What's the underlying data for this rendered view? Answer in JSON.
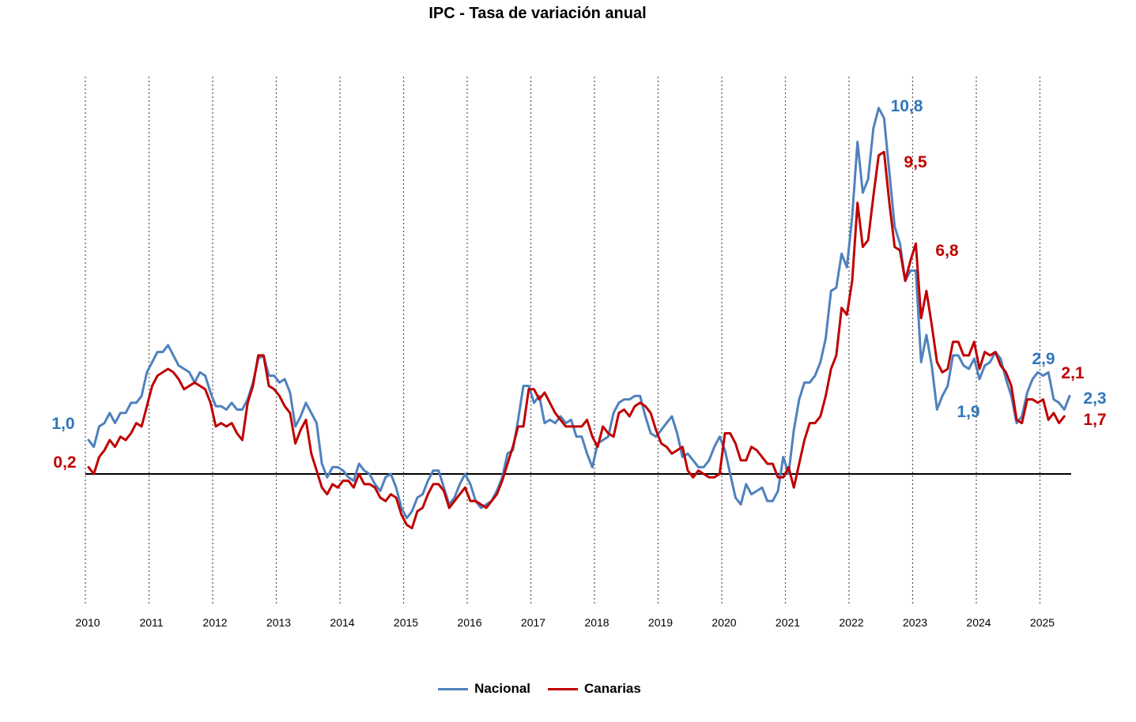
{
  "chart_data": {
    "type": "line",
    "title": "IPC - Tasa de variación anual",
    "xlabel": "",
    "ylabel": "",
    "ylim": [
      -3.0,
      12.5
    ],
    "grid": "vertical-dotted-yearly",
    "legend_position": "bottom-center",
    "x_ticks": [
      "2010",
      "2011",
      "2012",
      "2013",
      "2014",
      "2015",
      "2016",
      "2017",
      "2018",
      "2019",
      "2020",
      "2021",
      "2022",
      "2023",
      "2024",
      "2025"
    ],
    "x_start_year": 2010,
    "colors": {
      "Nacional": "#4F81BD",
      "Canarias": "#C00000",
      "axis": "#000000"
    },
    "series": [
      {
        "name": "Nacional",
        "values": [
          1.0,
          0.8,
          1.4,
          1.5,
          1.8,
          1.5,
          1.8,
          1.8,
          2.1,
          2.1,
          2.3,
          3.0,
          3.3,
          3.6,
          3.6,
          3.8,
          3.5,
          3.2,
          3.1,
          3.0,
          2.7,
          3.0,
          2.9,
          2.4,
          2.0,
          2.0,
          1.9,
          2.1,
          1.9,
          1.9,
          2.2,
          2.7,
          3.4,
          3.5,
          2.9,
          2.9,
          2.7,
          2.8,
          2.4,
          1.4,
          1.7,
          2.1,
          1.8,
          1.5,
          0.3,
          -0.1,
          0.2,
          0.2,
          0.1,
          -0.1,
          -0.2,
          0.3,
          0.1,
          0.0,
          -0.3,
          -0.5,
          -0.1,
          0.0,
          -0.4,
          -1.0,
          -1.3,
          -1.1,
          -0.7,
          -0.6,
          -0.2,
          0.1,
          0.1,
          -0.4,
          -0.9,
          -0.7,
          -0.3,
          0.0,
          -0.3,
          -0.8,
          -1.0,
          -0.9,
          -0.8,
          -0.5,
          -0.1,
          0.6,
          0.7,
          1.6,
          2.6,
          2.6,
          2.1,
          2.3,
          1.5,
          1.6,
          1.5,
          1.7,
          1.5,
          1.6,
          1.1,
          1.1,
          0.6,
          0.2,
          0.9,
          1.0,
          1.1,
          1.8,
          2.1,
          2.2,
          2.2,
          2.3,
          2.3,
          1.7,
          1.2,
          1.1,
          1.3,
          1.5,
          1.7,
          1.2,
          0.5,
          0.6,
          0.4,
          0.2,
          0.2,
          0.4,
          0.8,
          1.1,
          0.7,
          0.0,
          -0.7,
          -0.9,
          -0.3,
          -0.6,
          -0.5,
          -0.4,
          -0.8,
          -0.8,
          -0.5,
          0.5,
          0.0,
          1.3,
          2.2,
          2.7,
          2.7,
          2.9,
          3.3,
          4.0,
          5.4,
          5.5,
          6.5,
          6.1,
          7.6,
          9.8,
          8.3,
          8.7,
          10.2,
          10.8,
          10.5,
          8.9,
          7.3,
          6.8,
          5.7,
          6.0,
          6.0,
          3.3,
          4.1,
          3.2,
          1.9,
          2.3,
          2.6,
          3.5,
          3.5,
          3.2,
          3.1,
          3.4,
          2.8,
          3.2,
          3.3,
          3.6,
          3.4,
          2.8,
          2.3,
          1.5,
          1.7,
          2.4,
          2.8,
          3.0,
          2.9,
          3.0,
          2.2,
          2.1,
          1.9,
          2.3
        ],
        "end_label": "2,3"
      },
      {
        "name": "Canarias",
        "values": [
          0.2,
          0.0,
          0.5,
          0.7,
          1.0,
          0.8,
          1.1,
          1.0,
          1.2,
          1.5,
          1.4,
          2.0,
          2.6,
          2.9,
          3.0,
          3.1,
          3.0,
          2.8,
          2.5,
          2.6,
          2.7,
          2.6,
          2.5,
          2.1,
          1.4,
          1.5,
          1.4,
          1.5,
          1.2,
          1.0,
          2.1,
          2.6,
          3.5,
          3.5,
          2.6,
          2.5,
          2.3,
          2.0,
          1.8,
          0.9,
          1.3,
          1.6,
          0.6,
          0.1,
          -0.4,
          -0.6,
          -0.3,
          -0.4,
          -0.2,
          -0.2,
          -0.4,
          0.0,
          -0.3,
          -0.3,
          -0.4,
          -0.7,
          -0.8,
          -0.6,
          -0.7,
          -1.2,
          -1.5,
          -1.6,
          -1.1,
          -1.0,
          -0.6,
          -0.3,
          -0.3,
          -0.5,
          -1.0,
          -0.8,
          -0.6,
          -0.4,
          -0.8,
          -0.8,
          -0.9,
          -1.0,
          -0.8,
          -0.6,
          -0.2,
          0.3,
          0.8,
          1.4,
          1.4,
          2.5,
          2.5,
          2.2,
          2.4,
          2.1,
          1.8,
          1.6,
          1.4,
          1.4,
          1.4,
          1.4,
          1.6,
          1.1,
          0.8,
          1.4,
          1.2,
          1.1,
          1.8,
          1.9,
          1.7,
          2.0,
          2.1,
          2.0,
          1.8,
          1.3,
          0.9,
          0.8,
          0.6,
          0.7,
          0.8,
          0.1,
          -0.1,
          0.1,
          0.0,
          -0.1,
          -0.1,
          0.0,
          1.2,
          1.2,
          0.9,
          0.4,
          0.4,
          0.8,
          0.7,
          0.5,
          0.3,
          0.3,
          -0.1,
          -0.1,
          0.2,
          -0.4,
          0.3,
          1.0,
          1.5,
          1.5,
          1.7,
          2.3,
          3.1,
          3.5,
          4.9,
          4.7,
          5.7,
          8.0,
          6.7,
          6.9,
          8.2,
          9.4,
          9.5,
          8.0,
          6.7,
          6.6,
          5.7,
          6.3,
          6.8,
          4.6,
          5.4,
          4.4,
          3.3,
          3.0,
          3.1,
          3.9,
          3.9,
          3.5,
          3.5,
          3.9,
          3.1,
          3.6,
          3.5,
          3.6,
          3.2,
          3.0,
          2.6,
          1.6,
          1.5,
          2.2,
          2.2,
          2.1,
          2.2,
          1.6,
          1.8,
          1.5,
          1.7
        ],
        "end_label": "1,7"
      }
    ],
    "annotations": [
      {
        "text": "1,0",
        "series": "Nacional"
      },
      {
        "text": "0,2",
        "series": "Canarias"
      },
      {
        "text": "10,8",
        "series": "Nacional"
      },
      {
        "text": "9,5",
        "series": "Canarias"
      },
      {
        "text": "6,8",
        "series": "Canarias"
      },
      {
        "text": "1,9",
        "series": "Nacional"
      },
      {
        "text": "2,9",
        "series": "Nacional"
      },
      {
        "text": "2,1",
        "series": "Canarias"
      },
      {
        "text": "2,3",
        "series": "Nacional"
      },
      {
        "text": "1,7",
        "series": "Canarias"
      }
    ]
  },
  "legend": {
    "nacional": "Nacional",
    "canarias": "Canarias"
  }
}
